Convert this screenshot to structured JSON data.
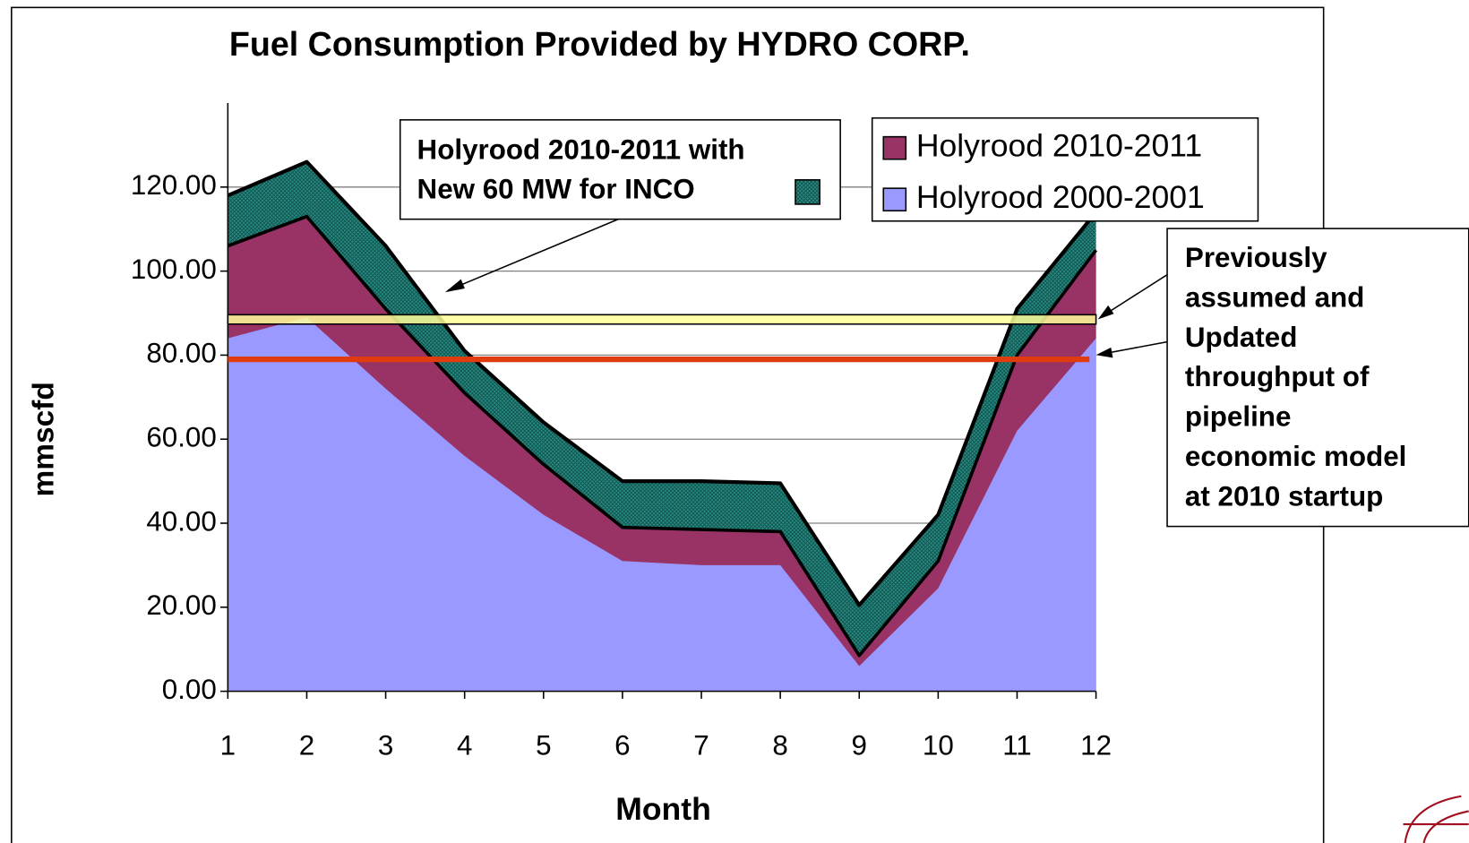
{
  "chart_data": {
    "type": "area",
    "title": "Fuel Consumption Provided by HYDRO CORP.",
    "x_label": "Month",
    "y_label": "mmscfd",
    "categories": [
      "1",
      "2",
      "3",
      "4",
      "5",
      "6",
      "7",
      "8",
      "9",
      "10",
      "11",
      "12"
    ],
    "series": [
      {
        "color": "#1f7a73",
        "values": [
          118,
          126,
          106,
          81,
          64,
          50,
          50,
          49.5,
          20.5,
          42,
          91,
          114
        ]
      },
      {
        "name": "Holyrood 2010-2011",
        "color": "#993366",
        "values": [
          106,
          113,
          91,
          71,
          54,
          39,
          38.5,
          38,
          8.5,
          31,
          80,
          105
        ]
      },
      {
        "name": "Holyrood 2000-2001",
        "color": "#9999ff",
        "values": [
          84,
          89,
          72,
          56,
          42,
          31,
          30,
          30,
          6,
          24.5,
          62,
          84
        ]
      }
    ],
    "inco_label": [
      "Holyrood 2010-2011 with",
      "New 60 MW for INCO"
    ],
    "reference_lines": [
      {
        "value": 88.5,
        "color": "#ffff99"
      },
      {
        "value": 79,
        "color": "#e03c10"
      }
    ],
    "annotation": [
      "Previously",
      "assumed and",
      "Updated",
      "throughput of",
      "pipeline",
      "economic model",
      "at 2010 startup"
    ],
    "ylim": [
      0,
      140
    ],
    "yticks": [
      {
        "value": 0,
        "label": "0.00"
      },
      {
        "value": 20,
        "label": "20.00"
      },
      {
        "value": 40,
        "label": "40.00"
      },
      {
        "value": 60,
        "label": "60.00"
      },
      {
        "value": 80,
        "label": "80.00"
      },
      {
        "value": 100,
        "label": "100.00"
      },
      {
        "value": 120,
        "label": "120.00"
      }
    ],
    "grid": true
  }
}
